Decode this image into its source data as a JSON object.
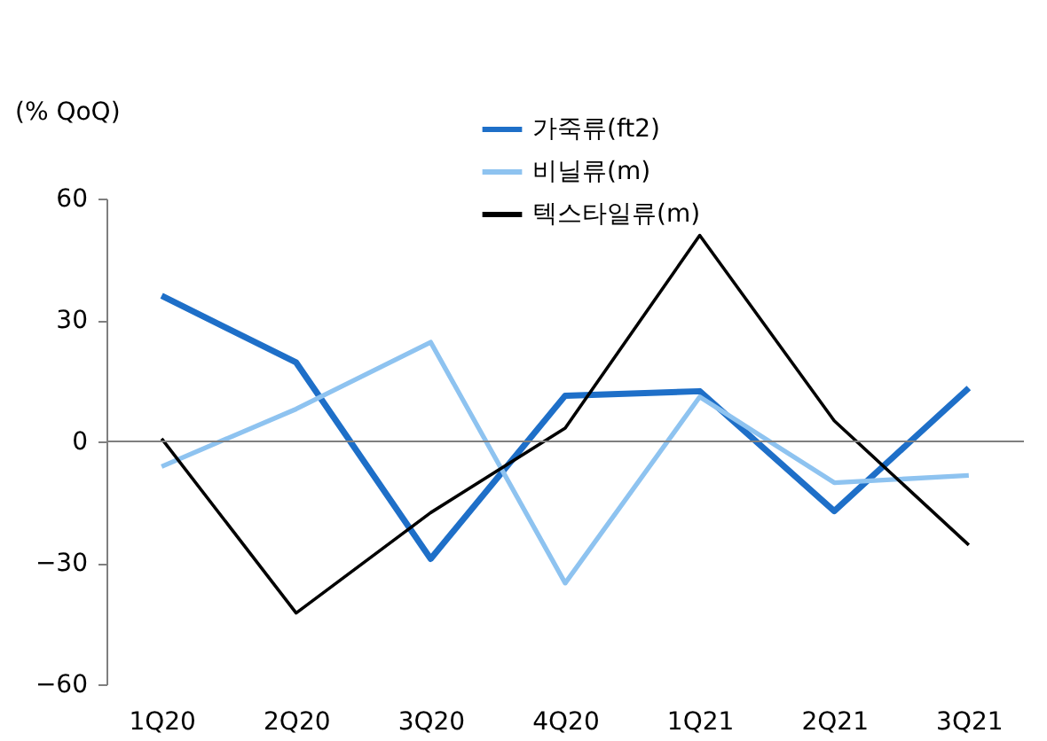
{
  "chart_data": {
    "type": "line",
    "ylabel": "(% QoQ)",
    "categories": [
      "1Q20",
      "2Q20",
      "3Q20",
      "4Q20",
      "1Q21",
      "2Q21",
      "3Q21"
    ],
    "series": [
      {
        "name": "가죽류(ft2)",
        "color": "#1e6fc8",
        "values": [
          36,
          19.5,
          -29,
          11.3,
          12.4,
          -17.2,
          13.2
        ]
      },
      {
        "name": "비닐류(m)",
        "color": "#8ec3f0",
        "values": [
          -6.2,
          8,
          24.5,
          -35,
          11,
          -10.2,
          -8.4
        ]
      },
      {
        "name": "텍스타일류(m)",
        "color": "#000000",
        "values": [
          0.7,
          -42.4,
          -17.6,
          3.3,
          50.9,
          5.1,
          -25.6
        ]
      }
    ],
    "ylim": [
      -60,
      60
    ],
    "yticks": [
      -60,
      -30,
      0,
      30,
      60
    ],
    "ref_lines": [
      {
        "axis": "y",
        "value": 0,
        "color": "#7f7f7f"
      }
    ],
    "grid": false,
    "legend": "top",
    "marker": "none",
    "line_style": "solid"
  }
}
